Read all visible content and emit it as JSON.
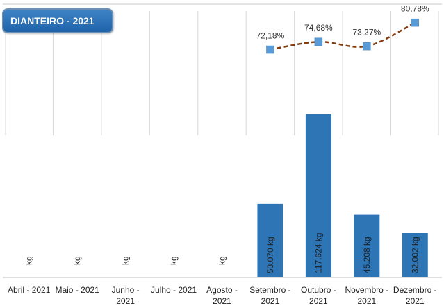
{
  "chart_data": {
    "type": "bar",
    "title": "DIANTEIRO - 2021",
    "categories": [
      [
        "Abril - 2021"
      ],
      [
        "Maio - 2021"
      ],
      [
        "Junho -",
        "2021"
      ],
      [
        "Julho - 2021"
      ],
      [
        "Agosto -",
        "2021"
      ],
      [
        "Setembro -",
        "2021"
      ],
      [
        "Outubro -",
        "2021"
      ],
      [
        "Novembro -",
        "2021"
      ],
      [
        "Dezembro -",
        "2021"
      ]
    ],
    "series": [
      {
        "type": "bar",
        "unit": "kg",
        "values": [
          null,
          null,
          null,
          null,
          null,
          53070,
          117624,
          45208,
          32002
        ],
        "data_labels": [
          "kg",
          "kg",
          "kg",
          "kg",
          "kg",
          "53.070 kg",
          "117.624 kg",
          "45.208 kg",
          "32.002 kg"
        ],
        "color": "#2e75b6"
      },
      {
        "type": "line",
        "values": [
          null,
          null,
          null,
          null,
          null,
          72.18,
          74.68,
          73.27,
          80.78
        ],
        "data_labels": [
          "",
          "",
          "",
          "",
          "",
          "72,18%",
          "74,68%",
          "73,27%",
          "80,78%"
        ],
        "marker_color": "#5b9bd5",
        "line_color": "#843c0c"
      }
    ],
    "ylim_bar": [
      0,
      170000
    ],
    "ylim_line": [
      0,
      88
    ],
    "grid": "vertical"
  }
}
